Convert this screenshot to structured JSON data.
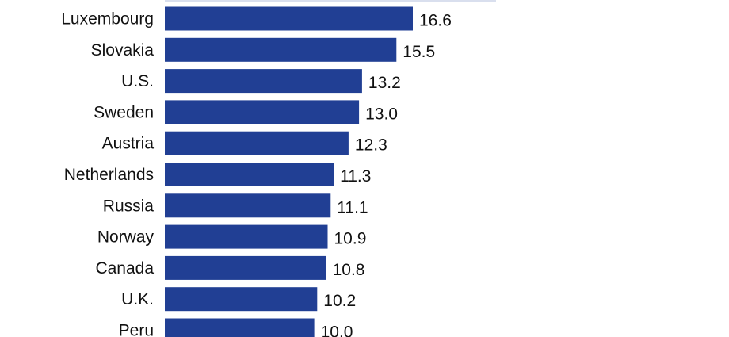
{
  "colors": {
    "bar": "#213f94",
    "text": "#111111",
    "background": "#ffffff",
    "top_rule": "#d9dfee"
  },
  "chart_data": {
    "type": "bar",
    "orientation": "horizontal",
    "categories": [
      "Luxembourg",
      "Slovakia",
      "U.S.",
      "Sweden",
      "Austria",
      "Netherlands",
      "Russia",
      "Norway",
      "Canada",
      "U.K.",
      "Peru"
    ],
    "values": [
      16.6,
      15.5,
      13.2,
      13.0,
      12.3,
      11.3,
      11.1,
      10.9,
      10.8,
      10.2,
      10.0
    ],
    "value_labels": [
      "16.6",
      "15.5",
      "13.2",
      "13.0",
      "12.3",
      "11.3",
      "11.1",
      "10.9",
      "10.8",
      "10.2",
      "10.0"
    ],
    "title": "",
    "xlabel": "",
    "ylabel": "",
    "xlim": [
      0,
      16.6
    ],
    "grid": false,
    "legend": "none"
  }
}
